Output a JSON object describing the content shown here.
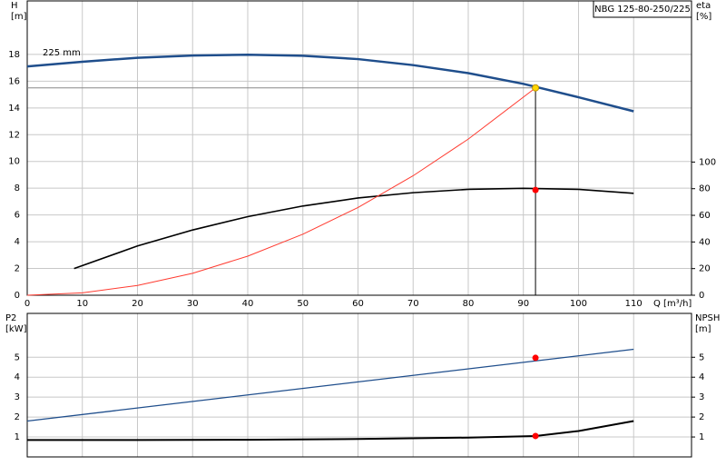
{
  "chart_data": [
    {
      "type": "line",
      "title": "NBG 125-80-250/225",
      "annotation": "225 mm",
      "y_label": [
        "H",
        "[m]"
      ],
      "y2_label": [
        "eta",
        "[%]"
      ],
      "x_label": "Q [m³/h]",
      "xlim": [
        0,
        120.5
      ],
      "ylim": [
        0,
        22
      ],
      "y2lim": [
        0,
        221
      ],
      "xticks": [
        0,
        10,
        20,
        30,
        40,
        50,
        60,
        70,
        80,
        90,
        100,
        110
      ],
      "yticks": [
        0,
        2,
        4,
        6,
        8,
        10,
        12,
        14,
        16,
        18
      ],
      "y2ticks": [
        0,
        20,
        40,
        60,
        80,
        100
      ],
      "grid": true,
      "show_xtick_labels": true,
      "series": [
        {
          "color": "#1f4e8c",
          "width": 2.5,
          "x": [
            0,
            10,
            20,
            30,
            40,
            50,
            60,
            70,
            80,
            90,
            100,
            110
          ],
          "values": [
            17.1,
            17.45,
            17.75,
            17.92,
            17.98,
            17.9,
            17.65,
            17.2,
            16.6,
            15.8,
            14.8,
            13.75
          ]
        },
        {
          "color": "#000000",
          "width": 1.6,
          "axis": "y2",
          "x": [
            8.5,
            20,
            30,
            40,
            50,
            60,
            70,
            80,
            90,
            100,
            110
          ],
          "values": [
            20,
            37,
            49,
            59,
            67,
            73,
            77,
            79.5,
            80.3,
            79.5,
            76.5
          ]
        },
        {
          "color": "#ff3b30",
          "width": 1,
          "x": [
            0,
            10,
            20,
            30,
            40,
            50,
            60,
            70,
            80,
            92.2
          ],
          "values": [
            0,
            0.18,
            0.73,
            1.64,
            2.92,
            4.56,
            6.56,
            8.93,
            11.67,
            15.5
          ]
        }
      ],
      "markers": [
        {
          "x": 92.2,
          "value": 15.5,
          "color": "#ffd700",
          "guides": true
        },
        {
          "x": 92.2,
          "value": 79,
          "color": "#ff0000",
          "axis": "y2"
        }
      ]
    },
    {
      "type": "line",
      "y_label": [
        "P2",
        "[kW]"
      ],
      "y2_label": [
        "NPSH",
        "[m]"
      ],
      "xlim": [
        0,
        120.5
      ],
      "ylim": [
        0,
        7.2
      ],
      "y2lim": [
        0,
        7.2
      ],
      "xticks": [
        0,
        10,
        20,
        30,
        40,
        50,
        60,
        70,
        80,
        90,
        100,
        110
      ],
      "yticks": [
        1,
        2,
        3,
        4,
        5
      ],
      "y2ticks": [
        1,
        2,
        3,
        4,
        5
      ],
      "grid": true,
      "show_xtick_labels": false,
      "series": [
        {
          "color": "#1f4e8c",
          "width": 1.3,
          "x": [
            0,
            110
          ],
          "values": [
            1.8,
            5.4
          ]
        },
        {
          "color": "#000000",
          "width": 2,
          "axis": "y2",
          "x": [
            0,
            20,
            40,
            60,
            80,
            92.2,
            100,
            110
          ],
          "values": [
            0.85,
            0.85,
            0.86,
            0.9,
            0.97,
            1.05,
            1.3,
            1.8
          ]
        }
      ],
      "markers": [
        {
          "x": 92.2,
          "value": 4.97,
          "color": "#ff0000"
        },
        {
          "x": 92.2,
          "value": 1.05,
          "color": "#ff0000",
          "axis": "y2"
        }
      ]
    }
  ]
}
